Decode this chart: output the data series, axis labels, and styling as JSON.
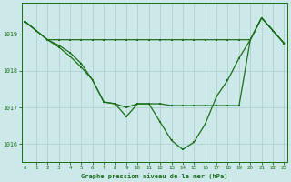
{
  "title": "Graphe pression niveau de la mer (hPa)",
  "bg_color": "#cce8e8",
  "line_color": "#1a6e1a",
  "grid_color": "#aacccc",
  "x_ticks": [
    0,
    1,
    2,
    3,
    4,
    5,
    6,
    7,
    8,
    9,
    10,
    11,
    12,
    13,
    14,
    15,
    16,
    17,
    18,
    19,
    20,
    21,
    22,
    23
  ],
  "y_ticks": [
    1016,
    1017,
    1018,
    1019
  ],
  "ylim": [
    1015.5,
    1019.85
  ],
  "xlim": [
    -0.3,
    23.3
  ],
  "line_top": [
    1019.35,
    1019.1,
    1018.85,
    1018.85,
    1018.85,
    1018.85,
    1018.85,
    1018.85,
    1018.85,
    1018.85,
    1018.85,
    1018.85,
    1018.85,
    1018.85,
    1018.85,
    1018.85,
    1018.85,
    1018.85,
    1018.85,
    1018.85,
    1018.85,
    1019.45,
    1019.1,
    1018.75
  ],
  "line_mid": [
    1019.35,
    1019.1,
    1018.85,
    1018.7,
    1018.5,
    1018.2,
    1017.75,
    1017.15,
    1017.1,
    1017.0,
    1017.1,
    1017.1,
    1017.1,
    1017.05,
    1017.05,
    1017.05,
    1017.05,
    1017.05,
    1017.05,
    1017.05,
    1018.85,
    1019.45,
    1019.1,
    1018.75
  ],
  "line_bot": [
    1019.35,
    1019.1,
    1018.85,
    1018.65,
    1018.4,
    1018.1,
    1017.75,
    1017.15,
    1017.1,
    1016.75,
    1017.1,
    1017.1,
    1016.6,
    1016.1,
    1015.85,
    1016.05,
    1016.55,
    1017.3,
    1017.75,
    1018.35,
    1018.85,
    1019.45,
    1019.1,
    1018.75
  ]
}
